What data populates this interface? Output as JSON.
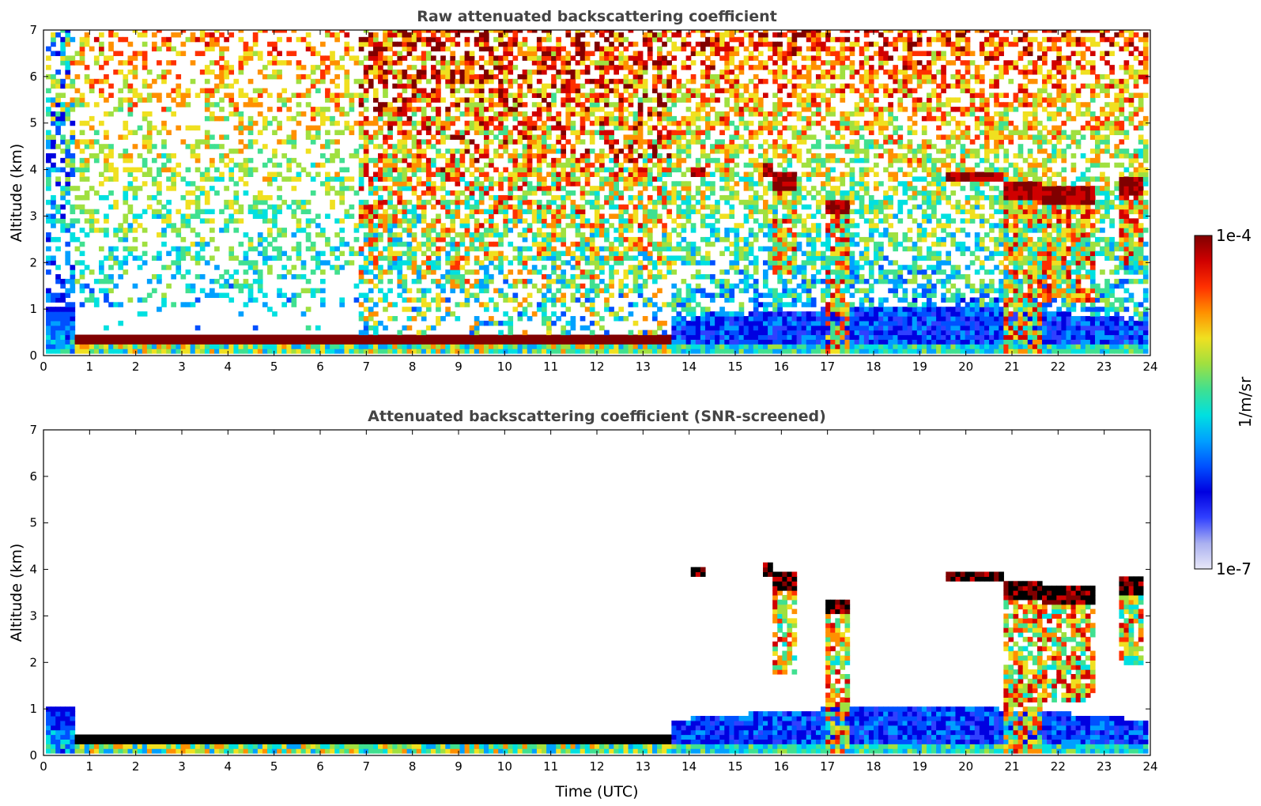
{
  "chart_data": [
    {
      "type": "heatmap",
      "title": "Raw attenuated backscattering coefficient",
      "xlabel": "",
      "ylabel": "Altitude (km)",
      "xlim": [
        0,
        24
      ],
      "ylim": [
        0,
        7
      ],
      "xticks": [
        0,
        1,
        2,
        3,
        4,
        5,
        6,
        7,
        8,
        9,
        10,
        11,
        12,
        13,
        14,
        15,
        16,
        17,
        18,
        19,
        20,
        21,
        22,
        23,
        24
      ],
      "yticks": [
        0,
        1,
        2,
        3,
        4,
        5,
        6,
        7
      ],
      "screened": false,
      "boundary_layer_top_km": [
        {
          "t": 0.7,
          "z": 0.3
        },
        {
          "t": 2,
          "z": 0.25
        },
        {
          "t": 3.5,
          "z": 0.3
        },
        {
          "t": 4.5,
          "z": 0.35
        },
        {
          "t": 6,
          "z": 0.28
        },
        {
          "t": 7,
          "z": 0.33
        },
        {
          "t": 9,
          "z": 0.27
        },
        {
          "t": 11,
          "z": 0.3
        },
        {
          "t": 13.6,
          "z": 0.28
        }
      ],
      "cloud_layers": [
        {
          "t0": 14.0,
          "t1": 14.3,
          "z_base": 3.78,
          "z_top": 4.0,
          "fall_to": null
        },
        {
          "t0": 15.5,
          "t1": 15.8,
          "z_base": 3.85,
          "z_top": 4.05,
          "fall_to": null
        },
        {
          "t0": 15.8,
          "t1": 16.3,
          "z_base": 3.55,
          "z_top": 3.85,
          "fall_to": 1.7
        },
        {
          "t0": 16.9,
          "t1": 17.4,
          "z_base": 3.0,
          "z_top": 3.3,
          "fall_to": 0.0
        },
        {
          "t0": 19.5,
          "t1": 20.8,
          "z_base": 3.7,
          "z_top": 3.9,
          "fall_to": null
        },
        {
          "t0": 20.8,
          "t1": 21.6,
          "z_base": 3.3,
          "z_top": 3.7,
          "fall_to": 0.0
        },
        {
          "t0": 21.6,
          "t1": 22.7,
          "z_base": 3.25,
          "z_top": 3.6,
          "fall_to": 1.1
        },
        {
          "t0": 23.3,
          "t1": 23.8,
          "z_base": 3.4,
          "z_top": 3.8,
          "fall_to": 1.9
        }
      ]
    },
    {
      "type": "heatmap",
      "title": "Attenuated backscattering coefficient (SNR-screened)",
      "xlabel": "Time (UTC)",
      "ylabel": "Altitude (km)",
      "xlim": [
        0,
        24
      ],
      "ylim": [
        0,
        7
      ],
      "xticks": [
        0,
        1,
        2,
        3,
        4,
        5,
        6,
        7,
        8,
        9,
        10,
        11,
        12,
        13,
        14,
        15,
        16,
        17,
        18,
        19,
        20,
        21,
        22,
        23,
        24
      ],
      "yticks": [
        0,
        1,
        2,
        3,
        4,
        5,
        6,
        7
      ],
      "screened": true
    }
  ],
  "colorbar": {
    "label": "1/m/sr",
    "max_label": "1e-4",
    "min_label": "1e-7",
    "colors": [
      "#e8e8f8",
      "#aab0f0",
      "#3040ff",
      "#0000e0",
      "#0050ff",
      "#00a0ff",
      "#00e0e0",
      "#40e090",
      "#a0e040",
      "#f0e020",
      "#ff9000",
      "#ff3000",
      "#d00000",
      "#800000"
    ]
  }
}
